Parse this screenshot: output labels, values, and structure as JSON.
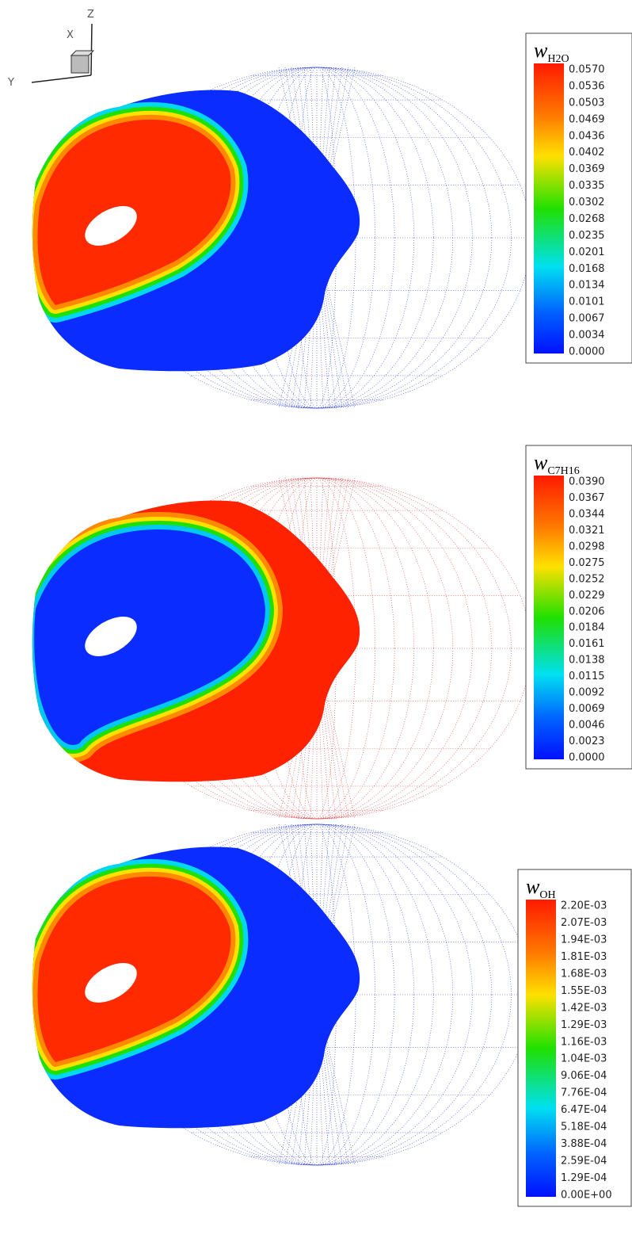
{
  "axes_triad": {
    "x": "X",
    "y": "Y",
    "z": "Z"
  },
  "panels": [
    {
      "legend": {
        "symbol": "w",
        "subscript": "H2O",
        "labels": [
          "0.0570",
          "0.0536",
          "0.0503",
          "0.0469",
          "0.0436",
          "0.0402",
          "0.0369",
          "0.0335",
          "0.0302",
          "0.0268",
          "0.0235",
          "0.0201",
          "0.0168",
          "0.0134",
          "0.0101",
          "0.0067",
          "0.0034",
          "0.0000"
        ]
      }
    },
    {
      "legend": {
        "symbol": "w",
        "subscript": "C7H16",
        "labels": [
          "0.0390",
          "0.0367",
          "0.0344",
          "0.0321",
          "0.0298",
          "0.0275",
          "0.0252",
          "0.0229",
          "0.0206",
          "0.0184",
          "0.0161",
          "0.0138",
          "0.0115",
          "0.0092",
          "0.0069",
          "0.0046",
          "0.0023",
          "0.0000"
        ]
      }
    },
    {
      "legend": {
        "symbol": "w",
        "subscript": "OH",
        "labels": [
          "2.20E-03",
          "2.07E-03",
          "1.94E-03",
          "1.81E-03",
          "1.68E-03",
          "1.55E-03",
          "1.42E-03",
          "1.29E-03",
          "1.16E-03",
          "1.04E-03",
          "9.06E-04",
          "7.76E-04",
          "6.47E-04",
          "5.18E-04",
          "3.88E-04",
          "2.59E-04",
          "1.29E-04",
          "0.00E+00"
        ]
      }
    }
  ]
}
